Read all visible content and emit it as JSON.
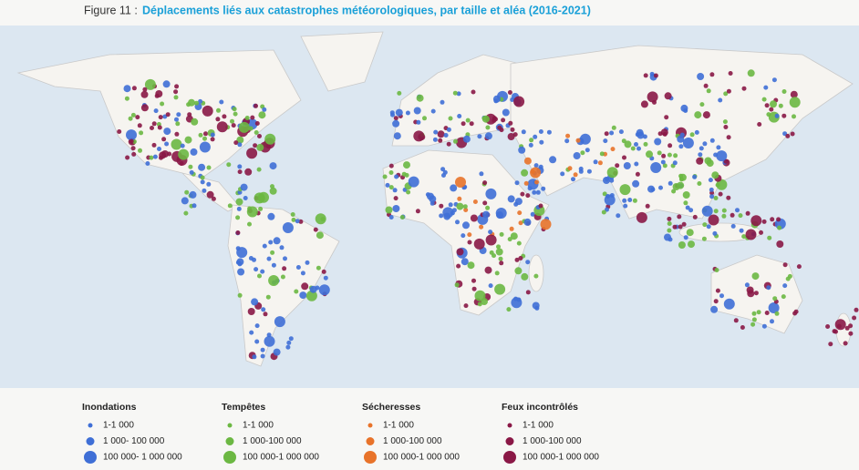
{
  "figure": {
    "label": "Figure 11 :",
    "title": "Déplacements liés aux catastrophes météorologiques, par taille et aléa (2016-2021)"
  },
  "legend": [
    {
      "heading": "Inondations",
      "color": "#3f6fd6",
      "items": [
        "1-1 000",
        "1 000- 100 000",
        "100 000- 1 000 000"
      ]
    },
    {
      "heading": "Tempêtes",
      "color": "#6cb843",
      "items": [
        "1-1 000",
        "1 000-100 000",
        "100 000-1 000 000"
      ]
    },
    {
      "heading": "Sécheresses",
      "color": "#e8732a",
      "items": [
        "1-1 000",
        "1 000-100 000",
        "100 000-1 000 000"
      ]
    },
    {
      "heading": "Feux incontrôlés",
      "color": "#8a1846",
      "items": [
        "1-1 000",
        "1 000-100 000",
        "100 000-1 000 000"
      ]
    }
  ]
}
